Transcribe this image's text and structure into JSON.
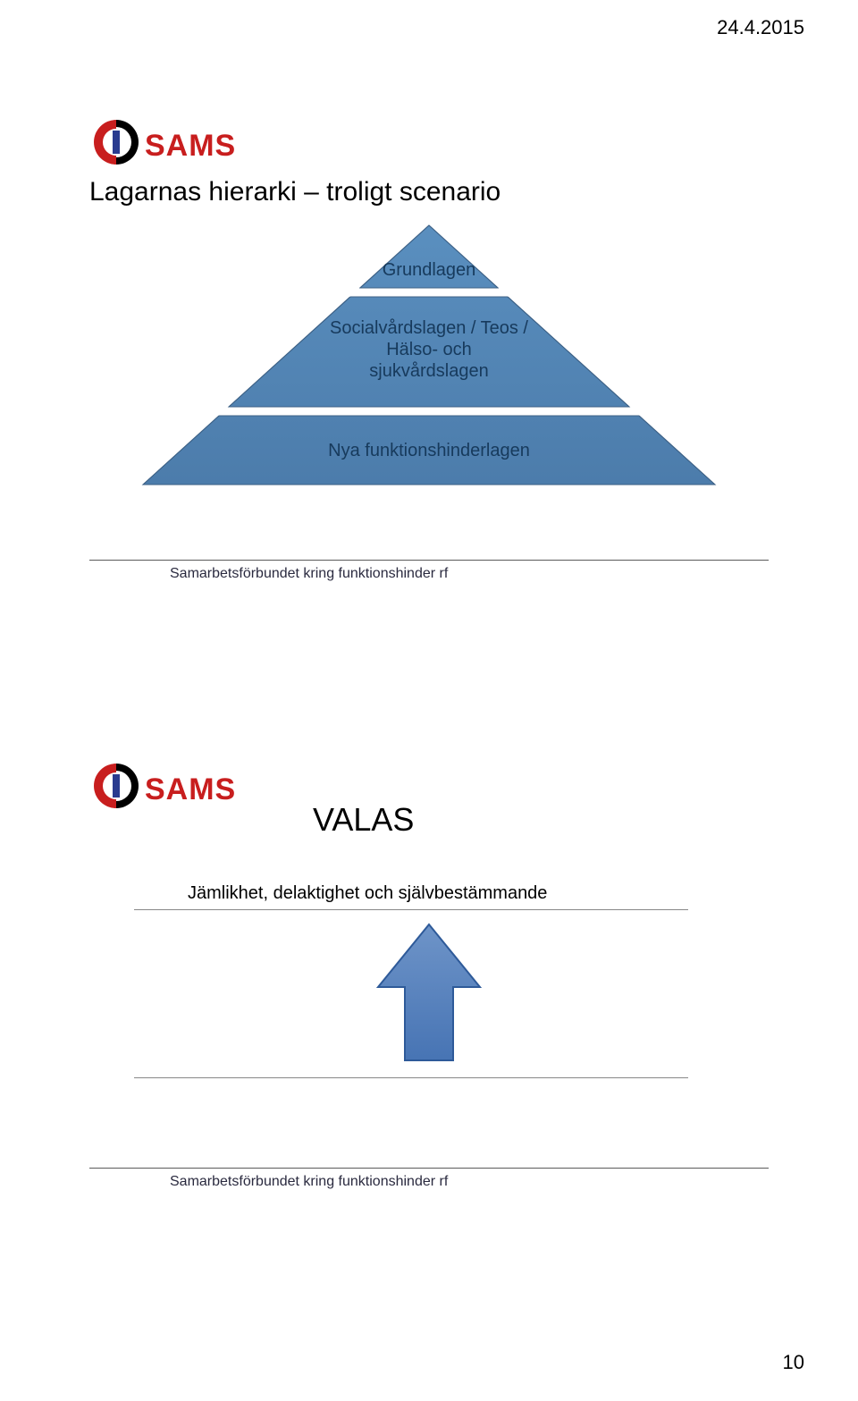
{
  "header": {
    "date": "24.4.2015"
  },
  "logo": {
    "text": "SAMS",
    "text_color": "#c81e1e",
    "red": "#c81e1e",
    "blue": "#2a3b8f",
    "black": "#000000"
  },
  "slide1": {
    "title": "Lagarnas hierarki – troligt scenario",
    "pyramid": {
      "fill_gradient_top": "#5a8fbf",
      "fill_gradient_bottom": "#4c7cab",
      "stroke": "#3d6186",
      "divider_color": "#ffffff",
      "text_color": "#173a5c",
      "levels": [
        {
          "text": "Grundlagen"
        },
        {
          "text": "Socialvårdslagen / Teos /\nHälso- och\nsjukvårdslagen"
        },
        {
          "text": "Nya funktionshinderlagen"
        }
      ]
    },
    "footer": "Samarbetsförbundet kring funktionshinder rf"
  },
  "slide2": {
    "title": "VALAS",
    "subtitle": "Jämlikhet, delaktighet och självbestämmande",
    "arrow": {
      "fill_top": "#6e94c8",
      "fill_bottom": "#4774b4",
      "stroke": "#2e5a99"
    },
    "footer": "Samarbetsförbundet kring funktionshinder rf"
  },
  "page_number": "10"
}
